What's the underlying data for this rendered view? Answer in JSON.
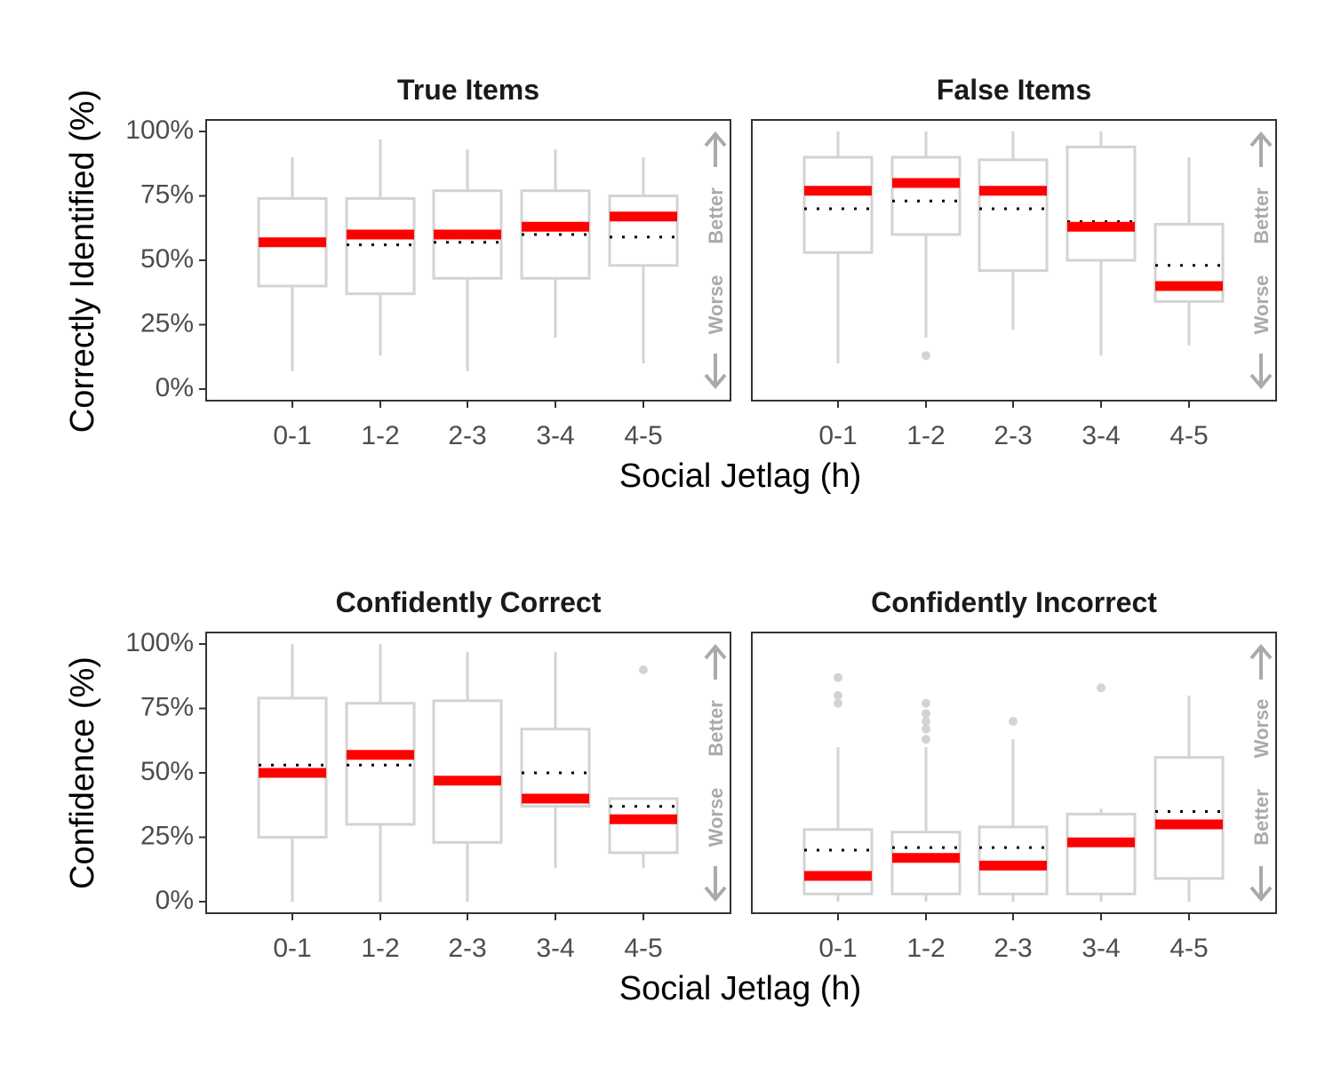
{
  "colors": {
    "box": "#d3d3d3",
    "median": "#ff0000",
    "mean_dotted": "#000000",
    "annotation": "#aaaaaa",
    "panel_border": "#333333"
  },
  "rows": [
    {
      "ylabel": "Correctly Identified (%)",
      "xlabel": "Social Jetlag (h)"
    },
    {
      "ylabel": "Confidence (%)",
      "xlabel": "Social Jetlag (h)"
    }
  ],
  "chart_data": [
    {
      "type": "box",
      "title": "True Items",
      "xlabel": "Social Jetlag (h)",
      "ylabel": "Correctly Identified (%)",
      "ylim": [
        0,
        100
      ],
      "yticks": [
        "0%",
        "25%",
        "50%",
        "75%",
        "100%"
      ],
      "categories": [
        "0-1",
        "1-2",
        "2-3",
        "3-4",
        "4-5"
      ],
      "boxes": [
        {
          "q1": 40,
          "median": 57,
          "q3": 74,
          "whisker_low": 7,
          "whisker_high": 90,
          "mean": 56,
          "outliers": []
        },
        {
          "q1": 37,
          "median": 60,
          "q3": 74,
          "whisker_low": 13,
          "whisker_high": 97,
          "mean": 56,
          "outliers": []
        },
        {
          "q1": 43,
          "median": 60,
          "q3": 77,
          "whisker_low": 7,
          "whisker_high": 93,
          "mean": 57,
          "outliers": []
        },
        {
          "q1": 43,
          "median": 63,
          "q3": 77,
          "whisker_low": 20,
          "whisker_high": 93,
          "mean": 60,
          "outliers": []
        },
        {
          "q1": 48,
          "median": 67,
          "q3": 75,
          "whisker_low": 10,
          "whisker_high": 90,
          "mean": 59,
          "outliers": []
        }
      ],
      "direction_labels": {
        "top": "Better",
        "bottom": "Worse"
      }
    },
    {
      "type": "box",
      "title": "False Items",
      "xlabel": "Social Jetlag (h)",
      "ylabel": "",
      "ylim": [
        0,
        100
      ],
      "yticks": [],
      "categories": [
        "0-1",
        "1-2",
        "2-3",
        "3-4",
        "4-5"
      ],
      "boxes": [
        {
          "q1": 53,
          "median": 77,
          "q3": 90,
          "whisker_low": 10,
          "whisker_high": 100,
          "mean": 70,
          "outliers": []
        },
        {
          "q1": 60,
          "median": 80,
          "q3": 90,
          "whisker_low": 20,
          "whisker_high": 100,
          "mean": 73,
          "outliers": [
            13
          ]
        },
        {
          "q1": 46,
          "median": 77,
          "q3": 89,
          "whisker_low": 23,
          "whisker_high": 100,
          "mean": 70,
          "outliers": []
        },
        {
          "q1": 50,
          "median": 63,
          "q3": 94,
          "whisker_low": 13,
          "whisker_high": 100,
          "mean": 65,
          "outliers": []
        },
        {
          "q1": 34,
          "median": 40,
          "q3": 64,
          "whisker_low": 17,
          "whisker_high": 90,
          "mean": 48,
          "outliers": []
        }
      ],
      "direction_labels": {
        "top": "Better",
        "bottom": "Worse"
      }
    },
    {
      "type": "box",
      "title": "Confidently Correct",
      "xlabel": "Social Jetlag (h)",
      "ylabel": "Confidence (%)",
      "ylim": [
        0,
        100
      ],
      "yticks": [
        "0%",
        "25%",
        "50%",
        "75%",
        "100%"
      ],
      "categories": [
        "0-1",
        "1-2",
        "2-3",
        "3-4",
        "4-5"
      ],
      "boxes": [
        {
          "q1": 25,
          "median": 50,
          "q3": 79,
          "whisker_low": 0,
          "whisker_high": 100,
          "mean": 53,
          "outliers": []
        },
        {
          "q1": 30,
          "median": 57,
          "q3": 77,
          "whisker_low": 0,
          "whisker_high": 100,
          "mean": 53,
          "outliers": []
        },
        {
          "q1": 23,
          "median": 47,
          "q3": 78,
          "whisker_low": 0,
          "whisker_high": 97,
          "mean": 48,
          "outliers": []
        },
        {
          "q1": 37,
          "median": 40,
          "q3": 67,
          "whisker_low": 13,
          "whisker_high": 97,
          "mean": 50,
          "outliers": []
        },
        {
          "q1": 19,
          "median": 32,
          "q3": 40,
          "whisker_low": 13,
          "whisker_high": 40,
          "mean": 37,
          "outliers": [
            90
          ]
        }
      ],
      "direction_labels": {
        "top": "Better",
        "bottom": "Worse"
      }
    },
    {
      "type": "box",
      "title": "Confidently Incorrect",
      "xlabel": "Social Jetlag (h)",
      "ylabel": "",
      "ylim": [
        0,
        100
      ],
      "yticks": [],
      "categories": [
        "0-1",
        "1-2",
        "2-3",
        "3-4",
        "4-5"
      ],
      "boxes": [
        {
          "q1": 3,
          "median": 10,
          "q3": 28,
          "whisker_low": 0,
          "whisker_high": 60,
          "mean": 20,
          "outliers": [
            77,
            80,
            87
          ]
        },
        {
          "q1": 3,
          "median": 17,
          "q3": 27,
          "whisker_low": 0,
          "whisker_high": 60,
          "mean": 21,
          "outliers": [
            63,
            67,
            70,
            73,
            77
          ]
        },
        {
          "q1": 3,
          "median": 14,
          "q3": 29,
          "whisker_low": 0,
          "whisker_high": 63,
          "mean": 21,
          "outliers": [
            70
          ]
        },
        {
          "q1": 3,
          "median": 23,
          "q3": 34,
          "whisker_low": 0,
          "whisker_high": 36,
          "mean": 22,
          "outliers": [
            83
          ]
        },
        {
          "q1": 9,
          "median": 30,
          "q3": 56,
          "whisker_low": 0,
          "whisker_high": 80,
          "mean": 35,
          "outliers": []
        }
      ],
      "direction_labels": {
        "top": "Worse",
        "bottom": "Better"
      }
    }
  ]
}
